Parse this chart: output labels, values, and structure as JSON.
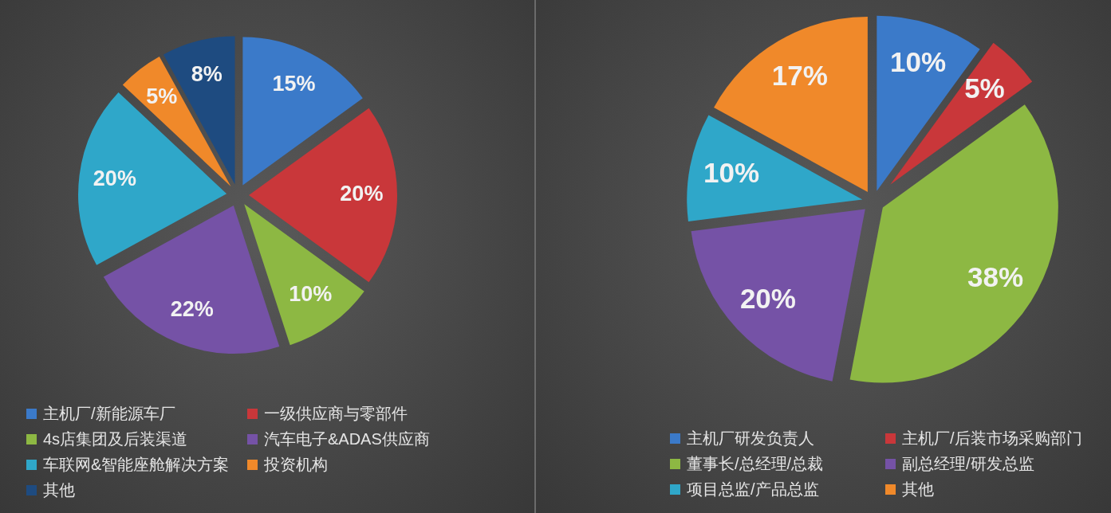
{
  "chart_data": [
    {
      "type": "pie",
      "categories": [
        "主机厂/新能源车厂",
        "一级供应商与零部件",
        "4s店集团及后装渠道",
        "汽车电子&ADAS供应商",
        "车联网&智能座舱解决方案",
        "投资机构",
        "其他"
      ],
      "values": [
        15,
        20,
        10,
        22,
        20,
        5,
        8
      ],
      "colors": [
        "#3b7ac9",
        "#c9373a",
        "#8db843",
        "#7552a6",
        "#2fa7c9",
        "#f0892a",
        "#1e4b80"
      ],
      "value_labels": [
        "15%",
        "20%",
        "10%",
        "22%",
        "20%",
        "5%",
        "8%"
      ],
      "legend": "bottom"
    },
    {
      "type": "pie",
      "categories": [
        "主机厂研发负责人",
        "主机厂/后装市场采购部门",
        "董事长/总经理/总裁",
        "副总经理/研发总监",
        "项目总监/产品总监",
        "其他"
      ],
      "values": [
        10,
        5,
        38,
        20,
        10,
        17
      ],
      "colors": [
        "#3b7ac9",
        "#c9373a",
        "#8db843",
        "#7552a6",
        "#2fa7c9",
        "#f0892a"
      ],
      "value_labels": [
        "10%",
        "5%",
        "38%",
        "20%",
        "10%",
        "17%"
      ],
      "legend": "bottom"
    }
  ]
}
